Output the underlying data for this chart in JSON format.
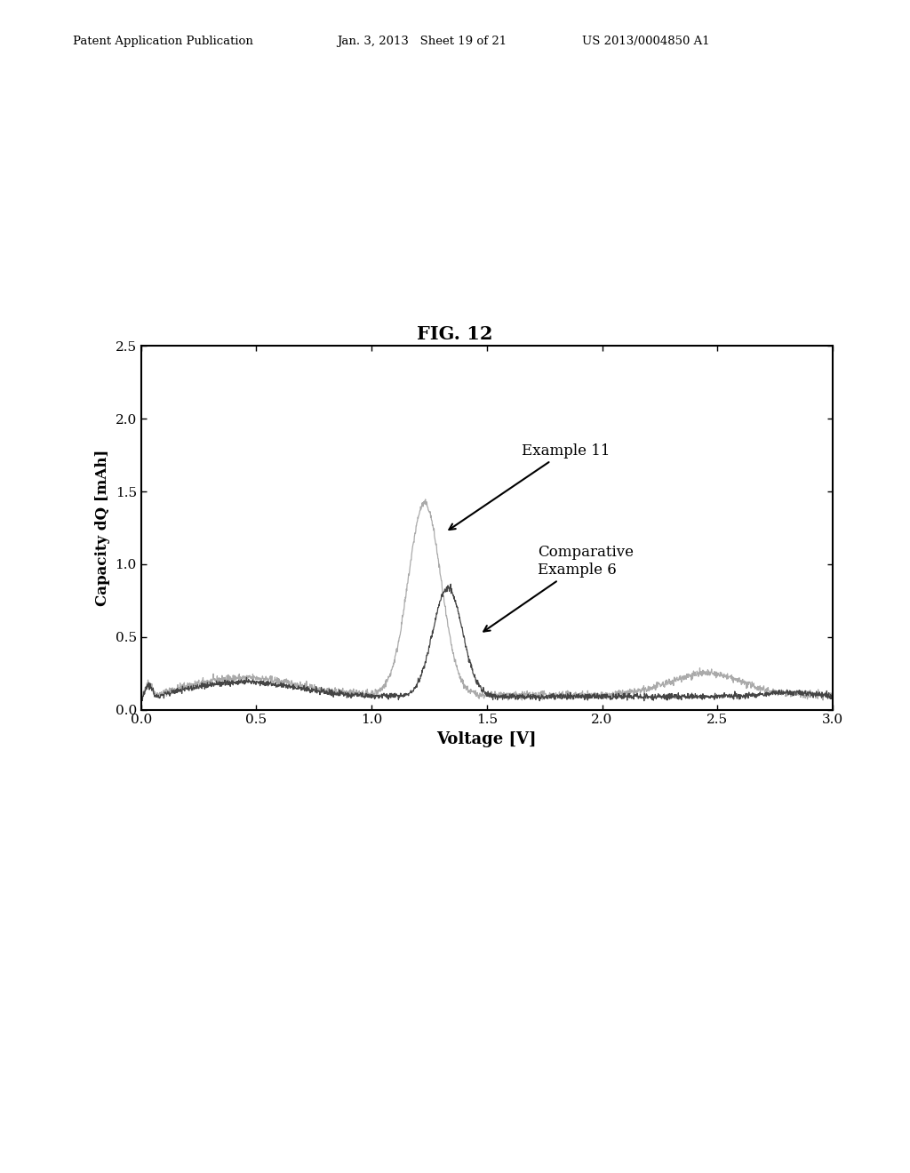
{
  "title": "FIG. 12",
  "xlabel": "Voltage [V]",
  "ylabel": "Capacity dQ [mAh]",
  "xlim": [
    0.0,
    3.0
  ],
  "ylim": [
    0.0,
    2.5
  ],
  "xticks": [
    0.0,
    0.5,
    1.0,
    1.5,
    2.0,
    2.5,
    3.0
  ],
  "yticks": [
    0.0,
    0.5,
    1.0,
    1.5,
    2.0,
    2.5
  ],
  "header_left": "Patent Application Publication",
  "header_mid": "Jan. 3, 2013   Sheet 19 of 21",
  "header_right": "US 2013/0004850 A1",
  "annotation1": "Example 11",
  "annotation2": "Comparative\nExample 6",
  "color_ex11": "#aaaaaa",
  "color_ex6": "#444444",
  "background": "#ffffff"
}
